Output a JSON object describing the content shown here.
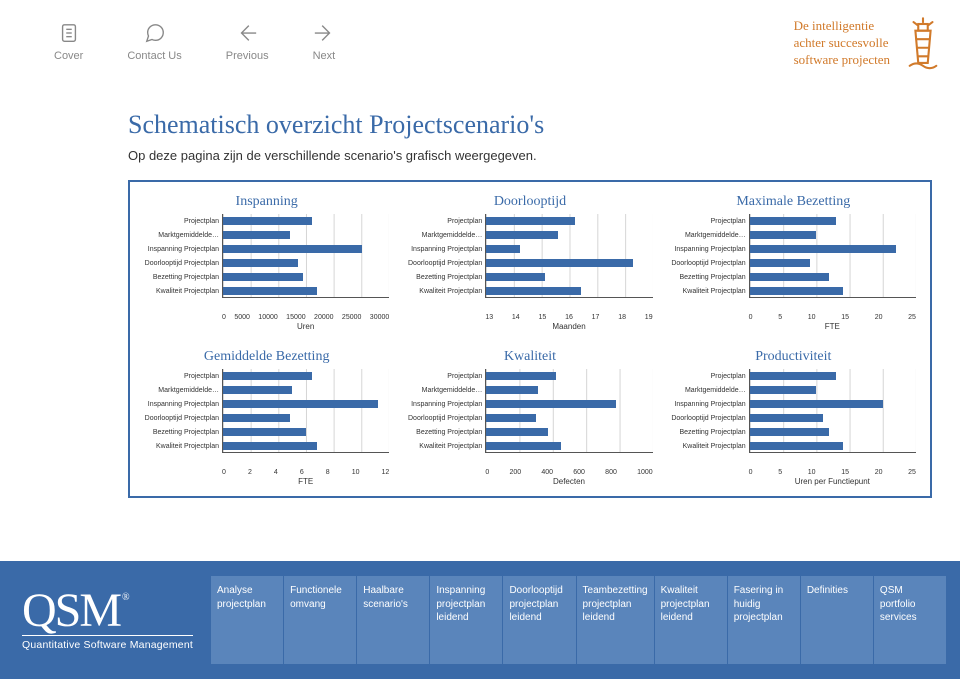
{
  "nav": {
    "items": [
      {
        "label": "Cover"
      },
      {
        "label": "Contact Us"
      },
      {
        "label": "Previous"
      },
      {
        "label": "Next"
      }
    ]
  },
  "tagline": {
    "line1": "De intelligentie",
    "line2": "achter succesvolle",
    "line3": "software projecten"
  },
  "title": "Schematisch overzicht Projectscenario's",
  "subtitle": "Op deze pagina zijn de verschillende scenario's grafisch weergegeven.",
  "y_categories": [
    "Projectplan",
    "Marktgemiddelde…",
    "Inspanning Projectplan",
    "Doorlooptijd Projectplan",
    "Bezetting Projectplan",
    "Kwaliteit Projectplan"
  ],
  "charts": [
    {
      "title": "Inspanning",
      "xlabel": "Uren",
      "xticks": [
        "0",
        "5000",
        "10000",
        "15000",
        "20000",
        "25000",
        "30000"
      ],
      "xmin": 0,
      "xmax": 30000,
      "values": [
        16000,
        12000,
        25000,
        13500,
        14500,
        17000
      ],
      "bar_color": "#3a6aa8",
      "grid_color": "#d5d5d5",
      "bg_color": "#ffffff"
    },
    {
      "title": "Doorlooptijd",
      "xlabel": "Maanden",
      "xticks": [
        "13",
        "14",
        "15",
        "16",
        "17",
        "18",
        "19"
      ],
      "xmin": 13,
      "xmax": 19,
      "values": [
        16.2,
        15.6,
        14.2,
        18.3,
        15.1,
        16.4
      ],
      "bar_color": "#3a6aa8",
      "grid_color": "#d5d5d5",
      "bg_color": "#ffffff"
    },
    {
      "title": "Maximale Bezetting",
      "xlabel": "FTE",
      "xticks": [
        "0",
        "5",
        "10",
        "15",
        "20",
        "25"
      ],
      "xmin": 0,
      "xmax": 25,
      "values": [
        13,
        10,
        22,
        9,
        12,
        14
      ],
      "bar_color": "#3a6aa8",
      "grid_color": "#d5d5d5",
      "bg_color": "#ffffff"
    },
    {
      "title": "Gemiddelde Bezetting",
      "xlabel": "FTE",
      "xticks": [
        "0",
        "2",
        "4",
        "6",
        "8",
        "10",
        "12"
      ],
      "xmin": 0,
      "xmax": 12,
      "values": [
        6.4,
        5.0,
        11.2,
        4.8,
        6.0,
        6.8
      ],
      "bar_color": "#3a6aa8",
      "grid_color": "#d5d5d5",
      "bg_color": "#ffffff"
    },
    {
      "title": "Kwaliteit",
      "xlabel": "Defecten",
      "xticks": [
        "0",
        "200",
        "400",
        "600",
        "800",
        "1000"
      ],
      "xmin": 0,
      "xmax": 1000,
      "values": [
        420,
        310,
        780,
        300,
        370,
        450
      ],
      "bar_color": "#3a6aa8",
      "grid_color": "#d5d5d5",
      "bg_color": "#ffffff"
    },
    {
      "title": "Productiviteit",
      "xlabel": "Uren per Functiepunt",
      "xticks": [
        "0",
        "5",
        "10",
        "15",
        "20",
        "25"
      ],
      "xmin": 0,
      "xmax": 25,
      "values": [
        13,
        10,
        20,
        11,
        12,
        14
      ],
      "bar_color": "#3a6aa8",
      "grid_color": "#d5d5d5",
      "bg_color": "#ffffff"
    }
  ],
  "footer": {
    "logo_sub": "Quantitative Software Management",
    "tabs": [
      "Analyse projectplan",
      "Functionele omvang",
      "Haalbare scenario's",
      "Inspanning projectplan leidend",
      "Doorlooptijd projectplan leidend",
      "Teambezetting projectplan leidend",
      "Kwaliteit projectplan leidend",
      "Fasering in huidig projectplan",
      "Definities",
      "QSM portfolio services"
    ]
  },
  "colors": {
    "brand_blue": "#3a6aa8",
    "brand_orange": "#d17a2b",
    "nav_gray": "#888888",
    "footer_tab": "#5a85bb"
  }
}
